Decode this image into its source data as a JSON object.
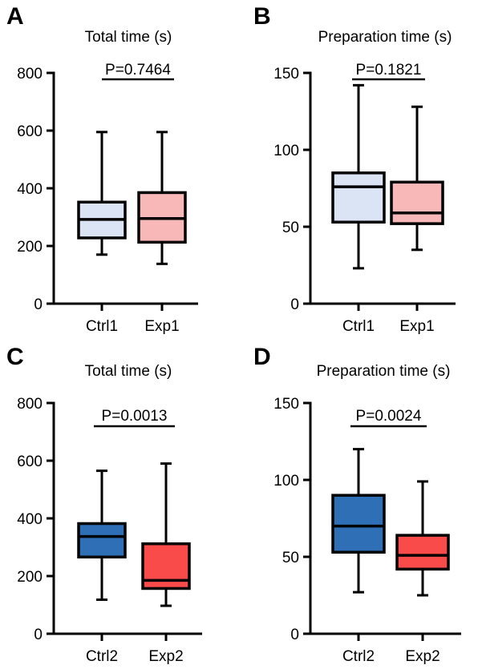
{
  "chart_data": [
    {
      "type": "box",
      "panel": "A",
      "title": "Total time (s)",
      "ylim": [
        0,
        800
      ],
      "yticks": [
        0,
        200,
        400,
        600,
        800
      ],
      "categories": [
        "Ctrl1",
        "Exp1"
      ],
      "boxes": [
        {
          "min": 170,
          "q1": 228,
          "median": 292,
          "q3": 352,
          "max": 595,
          "color": "#dbe4f5"
        },
        {
          "min": 138,
          "q1": 213,
          "median": 295,
          "q3": 385,
          "max": 595,
          "color": "#f9b8b8"
        }
      ],
      "comparison": "P=0.7464"
    },
    {
      "type": "box",
      "panel": "B",
      "title": "Preparation time (s)",
      "ylim": [
        0,
        150
      ],
      "yticks": [
        0,
        50,
        100,
        150
      ],
      "categories": [
        "Ctrl1",
        "Exp1"
      ],
      "boxes": [
        {
          "min": 23,
          "q1": 53,
          "median": 76,
          "q3": 85,
          "max": 142,
          "color": "#dbe4f5"
        },
        {
          "min": 35,
          "q1": 52,
          "median": 59,
          "q3": 79,
          "max": 128,
          "color": "#f9b8b8"
        }
      ],
      "comparison": "P=0.1821"
    },
    {
      "type": "box",
      "panel": "C",
      "title": "Total time (s)",
      "ylim": [
        0,
        800
      ],
      "yticks": [
        0,
        200,
        400,
        600,
        800
      ],
      "categories": [
        "Ctrl2",
        "Exp2"
      ],
      "boxes": [
        {
          "min": 118,
          "q1": 266,
          "median": 337,
          "q3": 382,
          "max": 565,
          "color": "#2e6fb5"
        },
        {
          "min": 97,
          "q1": 157,
          "median": 185,
          "q3": 312,
          "max": 590,
          "color": "#fa4b4b"
        }
      ],
      "comparison": "P=0.0013"
    },
    {
      "type": "box",
      "panel": "D",
      "title": "Preparation time (s)",
      "ylim": [
        0,
        150
      ],
      "yticks": [
        0,
        50,
        100,
        150
      ],
      "categories": [
        "Ctrl2",
        "Exp2"
      ],
      "boxes": [
        {
          "min": 27,
          "q1": 53,
          "median": 70,
          "q3": 90,
          "max": 120,
          "color": "#2e6fb5"
        },
        {
          "min": 25,
          "q1": 42,
          "median": 51,
          "q3": 64,
          "max": 99,
          "color": "#fa4b4b"
        }
      ],
      "comparison": "P=0.0024"
    }
  ]
}
